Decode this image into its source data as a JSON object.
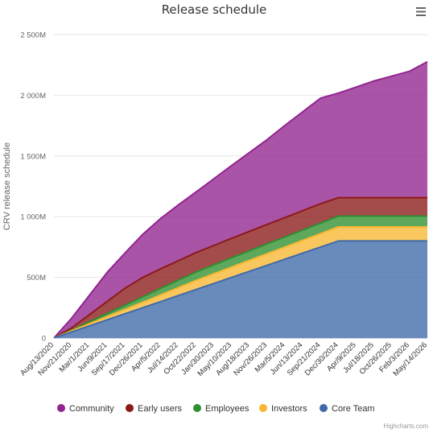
{
  "chart_data": {
    "type": "area",
    "stacked": true,
    "title": "Release schedule",
    "ylabel": "CRV release schedule",
    "xlabel": "",
    "ylim": [
      0,
      2500
    ],
    "y_ticks": [
      {
        "value": 0,
        "label": "0"
      },
      {
        "value": 500,
        "label": "500M"
      },
      {
        "value": 1000,
        "label": "1 000M"
      },
      {
        "value": 1500,
        "label": "1 500M"
      },
      {
        "value": 2000,
        "label": "2 000M"
      },
      {
        "value": 2500,
        "label": "2 500M"
      }
    ],
    "categories": [
      "Aug/13/2020",
      "Nov/21/2020",
      "Mar/1/2021",
      "Jun/9/2021",
      "Sep/17/2021",
      "Dec/26/2021",
      "Apr/5/2022",
      "Jul/14/2022",
      "Oct/22/2022",
      "Jan/30/2023",
      "May/10/2023",
      "Aug/18/2023",
      "Nov/26/2023",
      "Mar/5/2024",
      "Jun/13/2024",
      "Sep/21/2024",
      "Dec/30/2024",
      "Apr/9/2025",
      "Jul/18/2025",
      "Oct/26/2025",
      "Feb/3/2026",
      "May/14/2026"
    ],
    "x_tick_labels": [
      "Aug/13/2020",
      "Nov/21/2020",
      "Mar/1/2021",
      "Jun/9/2021",
      "Sep/17/2021",
      "Dec/26/2021",
      "Apr/5/2022",
      "Jul/14/2022",
      "Oct/22/2022",
      "Jan/30/2023",
      "May/10/2023",
      "Aug/18/2023",
      "Nov/26/2023",
      "Mar/5/2024",
      "Jun/13/2024",
      "Sep/21/2024",
      "Dec/30/2024",
      "Apr/9/2025",
      "Jul/18/2025",
      "Oct/26/2025",
      "Feb/3/2026",
      "May/14/2026"
    ],
    "series": [
      {
        "name": "Core Team",
        "color": "#3f6aa8",
        "values": [
          0,
          50,
          100,
          150,
          200,
          250,
          300,
          350,
          400,
          450,
          500,
          550,
          600,
          650,
          700,
          750,
          800,
          800,
          800,
          800,
          800,
          800
        ]
      },
      {
        "name": "Investors",
        "color": "#f7b731",
        "values": [
          0,
          9,
          18,
          27,
          36,
          45,
          55,
          65,
          75,
          80,
          85,
          90,
          95,
          100,
          105,
          110,
          115,
          115,
          115,
          115,
          115,
          115
        ]
      },
      {
        "name": "Employees",
        "color": "#2f8f2f",
        "values": [
          0,
          5,
          15,
          25,
          35,
          45,
          55,
          62,
          69,
          73,
          77,
          79,
          81,
          83,
          85,
          87,
          90,
          90,
          90,
          90,
          90,
          90
        ]
      },
      {
        "name": "Early users",
        "color": "#8b1a1a",
        "values": [
          0,
          20,
          60,
          100,
          140,
          160,
          160,
          160,
          160,
          160,
          160,
          160,
          160,
          160,
          160,
          160,
          151,
          151,
          151,
          151,
          151,
          151
        ]
      },
      {
        "name": "Community",
        "color": "#922490",
        "values": [
          0,
          80,
          160,
          240,
          290,
          355,
          415,
          460,
          500,
          550,
          600,
          650,
          700,
          760,
          815,
          870,
          862,
          912,
          962,
          1002,
          1042,
          1120
        ]
      }
    ],
    "legend": {
      "position": "bottom",
      "items": [
        "Community",
        "Early users",
        "Employees",
        "Investors",
        "Core Team"
      ]
    },
    "credits": "Highcharts.com",
    "grid": true,
    "menu_icon": "hamburger-menu-icon"
  }
}
